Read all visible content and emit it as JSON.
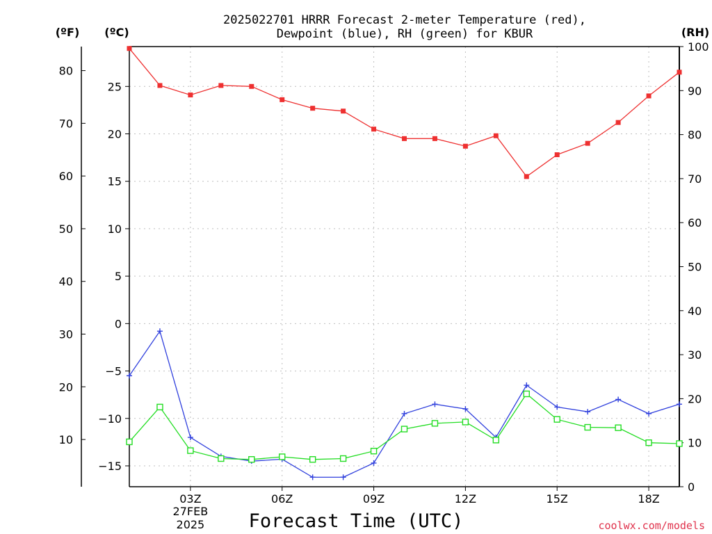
{
  "chart_data": {
    "type": "line",
    "title_lines": [
      "2025022701 HRRR Forecast 2-meter Temperature (red),",
      "Dewpoint (blue), RH (green) for KBUR"
    ],
    "xlabel": "Forecast Time (UTC)",
    "x_hours": [
      1,
      2,
      3,
      4,
      5,
      6,
      7,
      8,
      9,
      10,
      11,
      12,
      13,
      14,
      15,
      16,
      17,
      18,
      19
    ],
    "x_ticks": [
      {
        "hour": 3,
        "label": "03Z",
        "sublabel": [
          "27FEB",
          "2025"
        ]
      },
      {
        "hour": 6,
        "label": "06Z"
      },
      {
        "hour": 9,
        "label": "09Z"
      },
      {
        "hour": 12,
        "label": "12Z"
      },
      {
        "hour": 15,
        "label": "15Z"
      },
      {
        "hour": 18,
        "label": "18Z"
      }
    ],
    "xlim": [
      1,
      19
    ],
    "celsius_axis": {
      "unit": "(ºC)",
      "ylim": [
        -17.2,
        29.2
      ],
      "ticks": [
        "25",
        "20",
        "15",
        "10",
        "5",
        "0",
        "-5",
        "-10",
        "-15"
      ]
    },
    "fahrenheit_axis": {
      "unit": "(ºF)",
      "ticks": [
        "80",
        "70",
        "60",
        "50",
        "40",
        "30",
        "20",
        "10"
      ]
    },
    "rh_axis": {
      "unit": "(RH)",
      "ylim": [
        0,
        100
      ],
      "ticks": [
        "100",
        "90",
        "80",
        "70",
        "60",
        "50",
        "40",
        "30",
        "20",
        "10",
        "0"
      ]
    },
    "series": [
      {
        "name": "Temperature",
        "axis": "C",
        "color": "#ee3030",
        "marker": "filled-square",
        "values": [
          29.0,
          25.1,
          24.1,
          25.1,
          25.0,
          23.6,
          22.7,
          22.4,
          20.5,
          19.5,
          19.5,
          18.7,
          19.8,
          15.5,
          17.8,
          19.0,
          21.2,
          24.0,
          26.5
        ]
      },
      {
        "name": "Dewpoint",
        "axis": "C",
        "color": "#3040dd",
        "marker": "plus",
        "values": [
          -5.5,
          -0.8,
          -12.0,
          -14.0,
          -14.5,
          -14.3,
          -16.2,
          -16.2,
          -14.7,
          -9.5,
          -8.5,
          -9.0,
          -12.0,
          -6.5,
          -8.8,
          -9.3,
          -8.0,
          -9.5,
          -8.5
        ]
      },
      {
        "name": "RH",
        "axis": "RH",
        "color": "#22dd22",
        "marker": "open-square",
        "values": [
          10.2,
          18.1,
          8.2,
          6.4,
          6.2,
          6.8,
          6.2,
          6.4,
          8.1,
          13.1,
          14.4,
          14.7,
          10.6,
          21.1,
          15.3,
          13.5,
          13.4,
          10.0,
          9.8
        ]
      }
    ],
    "grid": true
  },
  "credit": "coolwx.com/models"
}
